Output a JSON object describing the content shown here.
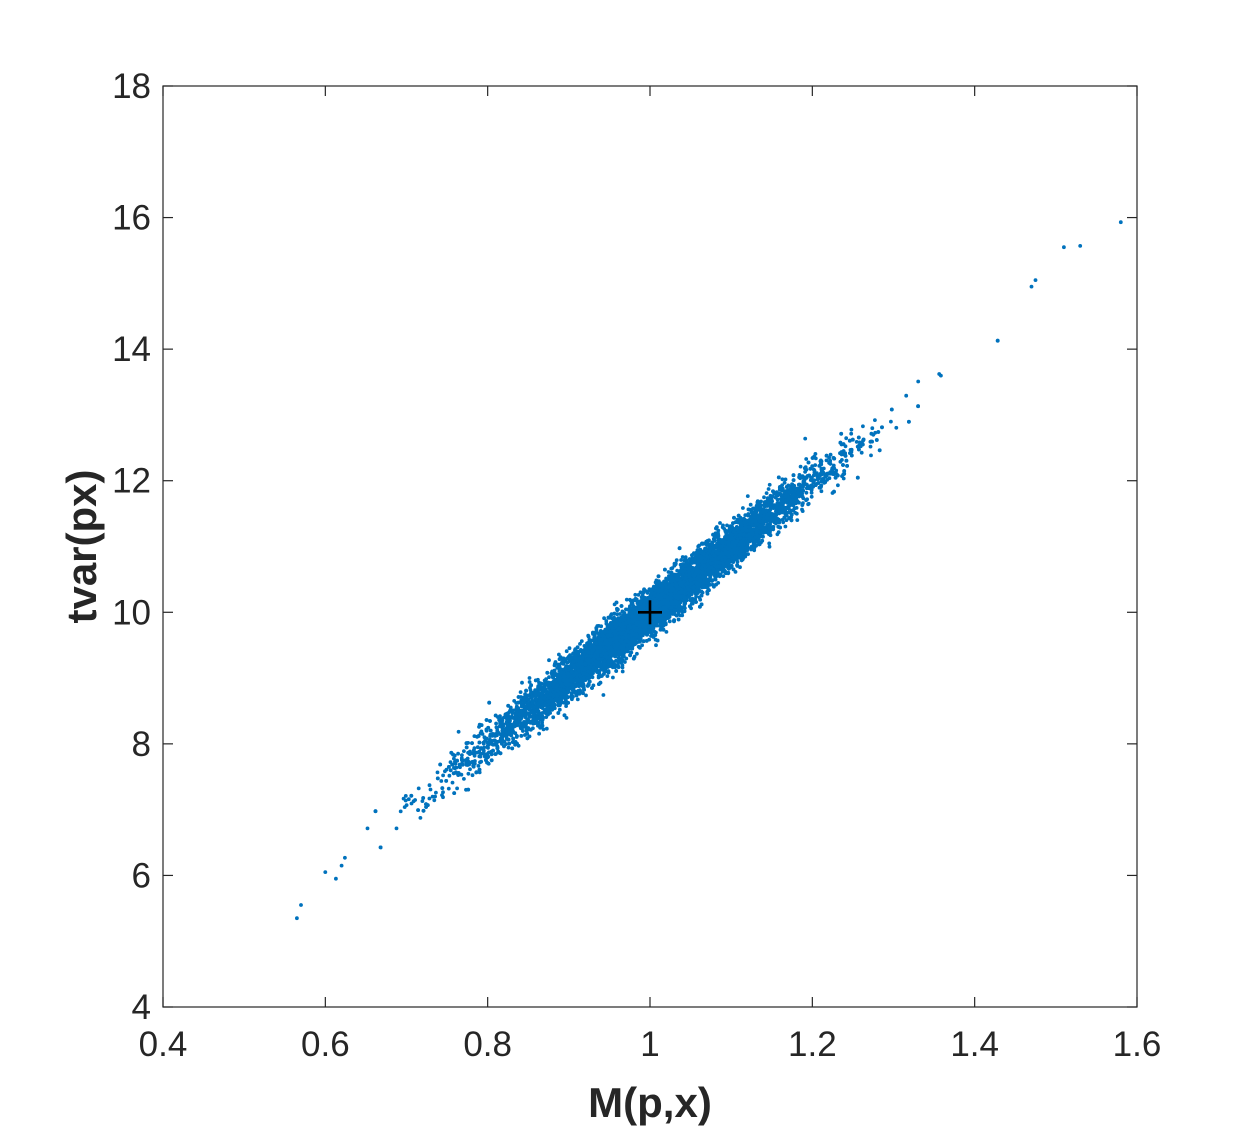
{
  "chart_data": {
    "type": "scatter",
    "title": "",
    "xlabel": "M(p,x)",
    "ylabel": "tvar(px)",
    "xlim": [
      0.4,
      1.6
    ],
    "ylim": [
      4,
      18
    ],
    "xticks": [
      0.4,
      0.6,
      0.8,
      1.0,
      1.2,
      1.4,
      1.6
    ],
    "xtick_labels": [
      "0.4",
      "0.6",
      "0.8",
      "1",
      "1.2",
      "1.4",
      "1.6"
    ],
    "yticks": [
      4,
      6,
      8,
      10,
      12,
      14,
      16,
      18
    ],
    "ytick_labels": [
      "4",
      "6",
      "8",
      "10",
      "12",
      "14",
      "16",
      "18"
    ],
    "grid": false,
    "series": [
      {
        "marker": "dot",
        "color": "#0072BD",
        "trend": {
          "slope": 10.0,
          "intercept": 0.0
        },
        "x_center": 1.0,
        "x_spread": 0.1,
        "y_spread_around_trend": 0.17,
        "outliers": [
          {
            "x": 0.565,
            "y": 5.35
          },
          {
            "x": 0.57,
            "y": 5.55
          },
          {
            "x": 0.6,
            "y": 6.05
          },
          {
            "x": 0.613,
            "y": 5.95
          },
          {
            "x": 0.62,
            "y": 6.15
          },
          {
            "x": 1.51,
            "y": 15.55
          },
          {
            "x": 1.53,
            "y": 15.57
          },
          {
            "x": 1.58,
            "y": 15.93
          },
          {
            "x": 1.47,
            "y": 14.95
          },
          {
            "x": 1.475,
            "y": 15.05
          }
        ]
      }
    ],
    "markers": [
      {
        "symbol": "+",
        "x": 1.0,
        "y": 10.0,
        "color": "#000000"
      }
    ]
  }
}
